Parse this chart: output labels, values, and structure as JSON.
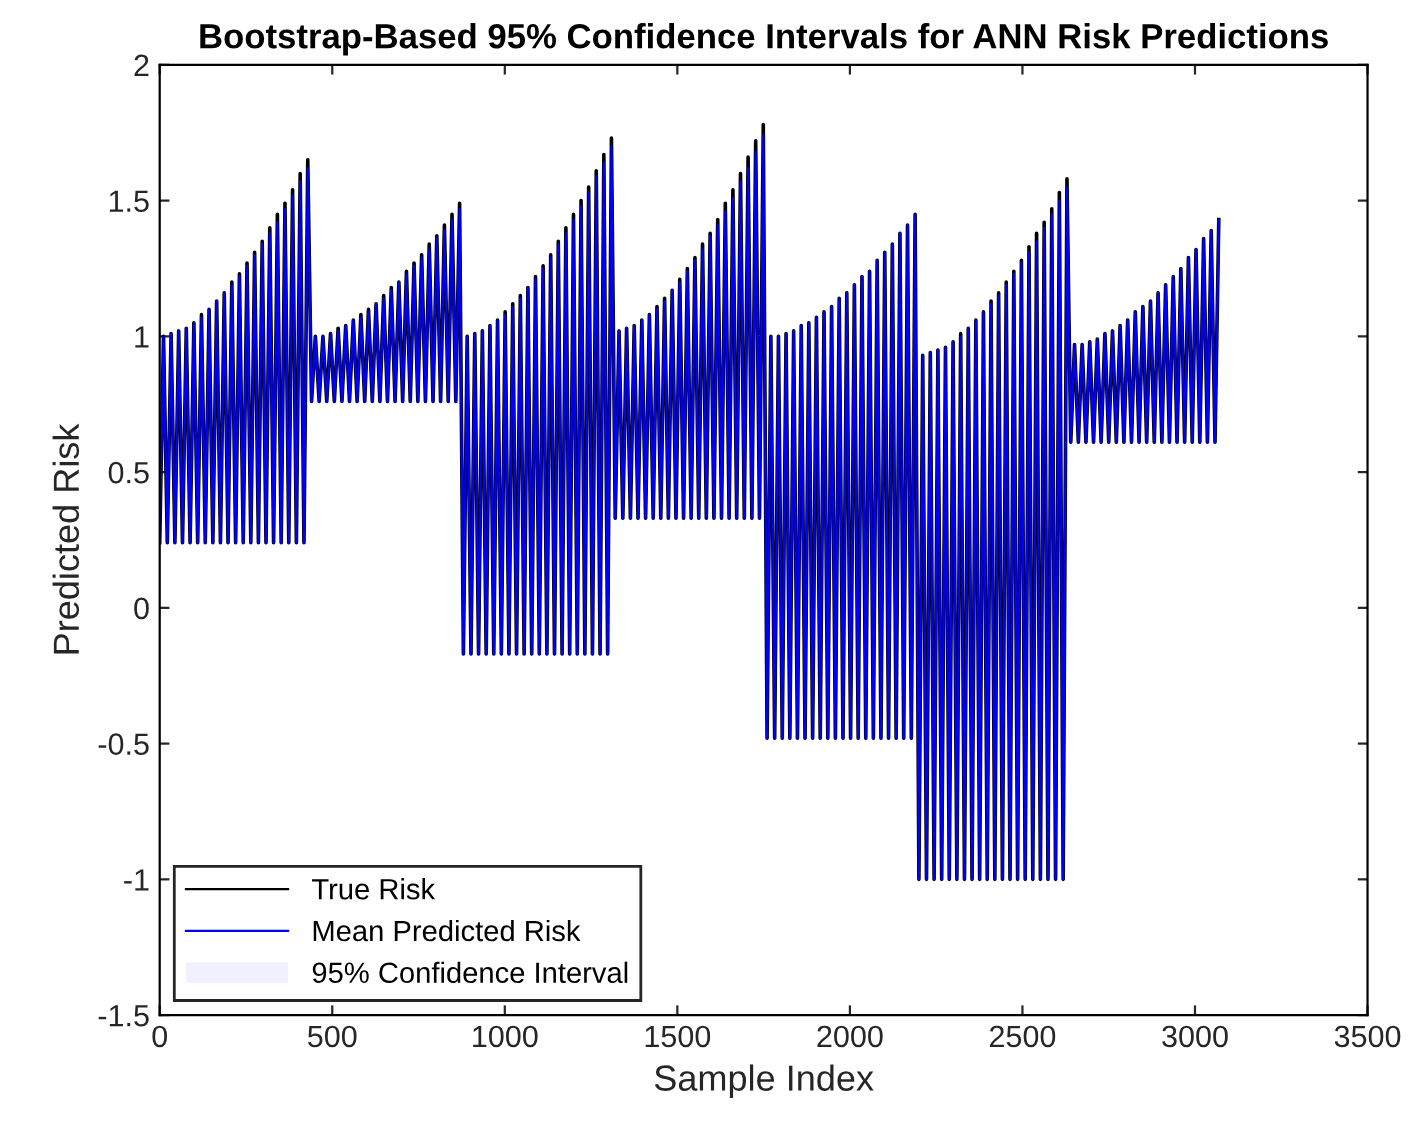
{
  "chart_data": {
    "type": "line",
    "title": "Bootstrap-Based 95% Confidence Intervals for ANN Risk Predictions",
    "xlabel": "Sample Index",
    "ylabel": "Predicted Risk",
    "x": [
      0,
      11,
      22,
      33,
      44,
      55,
      66,
      77,
      88,
      99,
      110,
      121,
      132,
      143,
      154,
      165,
      176,
      187,
      198,
      209,
      220,
      231,
      242,
      253,
      264,
      275,
      286,
      297,
      308,
      319,
      330,
      341,
      352,
      363,
      374,
      385,
      396,
      407,
      418,
      429,
      440,
      451,
      462,
      473,
      484,
      495,
      506,
      517,
      528,
      539,
      550,
      561,
      572,
      583,
      594,
      605,
      616,
      627,
      638,
      649,
      660,
      671,
      682,
      693,
      704,
      715,
      726,
      737,
      748,
      759,
      770,
      781,
      792,
      803,
      814,
      825,
      836,
      847,
      858,
      869,
      880,
      891,
      902,
      913,
      924,
      935,
      946,
      957,
      968,
      979,
      990,
      1001,
      1012,
      1023,
      1034,
      1045,
      1056,
      1067,
      1078,
      1089,
      1100,
      1111,
      1122,
      1133,
      1144,
      1155,
      1166,
      1177,
      1188,
      1199,
      1210,
      1221,
      1232,
      1243,
      1254,
      1265,
      1276,
      1287,
      1298,
      1309,
      1320,
      1331,
      1342,
      1353,
      1364,
      1375,
      1386,
      1397,
      1408,
      1419,
      1430,
      1441,
      1452,
      1463,
      1474,
      1485,
      1496,
      1507,
      1518,
      1529,
      1540,
      1551,
      1562,
      1573,
      1584,
      1595,
      1606,
      1617,
      1628,
      1639,
      1650,
      1661,
      1672,
      1683,
      1694,
      1705,
      1716,
      1727,
      1738,
      1749,
      1760,
      1771,
      1782,
      1793,
      1804,
      1815,
      1826,
      1837,
      1848,
      1859,
      1870,
      1881,
      1892,
      1903,
      1914,
      1925,
      1936,
      1947,
      1958,
      1969,
      1980,
      1991,
      2002,
      2013,
      2024,
      2035,
      2046,
      2057,
      2068,
      2079,
      2090,
      2101,
      2112,
      2123,
      2134,
      2145,
      2156,
      2167,
      2178,
      2189,
      2200,
      2211,
      2222,
      2233,
      2244,
      2255,
      2266,
      2277,
      2288,
      2299,
      2310,
      2321,
      2332,
      2343,
      2354,
      2365,
      2376,
      2387,
      2398,
      2409,
      2420,
      2431,
      2442,
      2453,
      2464,
      2475,
      2486,
      2497,
      2508,
      2519,
      2530,
      2541,
      2552,
      2563,
      2574,
      2585,
      2596,
      2607,
      2618,
      2629,
      2640,
      2651,
      2662,
      2673,
      2684,
      2695,
      2706,
      2717,
      2728,
      2739,
      2750,
      2761,
      2772,
      2783,
      2794,
      2805,
      2816,
      2827,
      2838,
      2849,
      2860,
      2871,
      2882,
      2893,
      2904,
      2915,
      2926,
      2937,
      2948,
      2959,
      2970,
      2981,
      2992,
      3003,
      3014,
      3025,
      3036,
      3047,
      3058,
      3069
    ],
    "series": [
      {
        "name": "True Risk",
        "type": "line",
        "color": "#000000",
        "values": [
          0.24,
          1.0,
          0.24,
          1.01,
          0.24,
          1.02,
          0.24,
          1.03,
          0.24,
          1.05,
          0.24,
          1.08,
          0.24,
          1.1,
          0.24,
          1.13,
          0.24,
          1.16,
          0.24,
          1.2,
          0.24,
          1.23,
          0.24,
          1.27,
          0.24,
          1.31,
          0.24,
          1.35,
          0.24,
          1.4,
          0.24,
          1.45,
          0.24,
          1.49,
          0.24,
          1.54,
          0.24,
          1.6,
          0.24,
          1.65,
          0.76,
          1.0,
          0.76,
          1.0,
          0.76,
          1.01,
          0.76,
          1.03,
          0.76,
          1.04,
          0.76,
          1.06,
          0.76,
          1.08,
          0.76,
          1.1,
          0.76,
          1.12,
          0.76,
          1.15,
          0.76,
          1.18,
          0.76,
          1.2,
          0.76,
          1.24,
          0.76,
          1.27,
          0.76,
          1.3,
          0.76,
          1.34,
          0.76,
          1.37,
          0.76,
          1.41,
          0.76,
          1.45,
          0.76,
          1.49,
          -0.17,
          1.0,
          -0.17,
          1.01,
          -0.17,
          1.02,
          -0.17,
          1.04,
          -0.17,
          1.06,
          -0.17,
          1.09,
          -0.17,
          1.12,
          -0.17,
          1.15,
          -0.17,
          1.18,
          -0.17,
          1.22,
          -0.17,
          1.26,
          -0.17,
          1.3,
          -0.17,
          1.35,
          -0.17,
          1.4,
          -0.17,
          1.45,
          -0.17,
          1.5,
          -0.17,
          1.55,
          -0.17,
          1.61,
          -0.17,
          1.67,
          -0.17,
          1.73,
          0.33,
          1.02,
          0.33,
          1.03,
          0.33,
          1.04,
          0.33,
          1.06,
          0.33,
          1.08,
          0.33,
          1.11,
          0.33,
          1.14,
          0.33,
          1.17,
          0.33,
          1.21,
          0.33,
          1.25,
          0.33,
          1.29,
          0.33,
          1.34,
          0.33,
          1.38,
          0.33,
          1.43,
          0.33,
          1.49,
          0.33,
          1.54,
          0.33,
          1.6,
          0.33,
          1.66,
          0.33,
          1.72,
          0.33,
          1.78,
          -0.48,
          1.0,
          -0.48,
          1.0,
          -0.48,
          1.01,
          -0.48,
          1.02,
          -0.48,
          1.04,
          -0.48,
          1.05,
          -0.48,
          1.07,
          -0.48,
          1.09,
          -0.48,
          1.11,
          -0.48,
          1.14,
          -0.48,
          1.16,
          -0.48,
          1.19,
          -0.48,
          1.22,
          -0.48,
          1.24,
          -0.48,
          1.28,
          -0.48,
          1.31,
          -0.48,
          1.34,
          -0.48,
          1.38,
          -0.48,
          1.41,
          -0.48,
          1.45,
          -1.0,
          0.93,
          -1.0,
          0.94,
          -1.0,
          0.95,
          -1.0,
          0.96,
          -1.0,
          0.98,
          -1.0,
          1.01,
          -1.0,
          1.03,
          -1.0,
          1.06,
          -1.0,
          1.09,
          -1.0,
          1.13,
          -1.0,
          1.16,
          -1.0,
          1.2,
          -1.0,
          1.24,
          -1.0,
          1.28,
          -1.0,
          1.33,
          -1.0,
          1.38,
          -1.0,
          1.42,
          -1.0,
          1.47,
          -1.0,
          1.53,
          -1.0,
          1.58,
          0.61,
          0.97,
          0.61,
          0.97,
          0.61,
          0.98,
          0.61,
          0.99,
          0.61,
          1.01,
          0.61,
          1.02,
          0.61,
          1.04,
          0.61,
          1.06,
          0.61,
          1.09,
          0.61,
          1.11,
          0.61,
          1.13,
          0.61,
          1.16,
          0.61,
          1.19,
          0.61,
          1.22,
          0.61,
          1.25,
          0.61,
          1.29,
          0.61,
          1.32,
          0.61,
          1.36,
          0.61,
          1.39,
          0.61,
          1.43
        ]
      },
      {
        "name": "Mean Predicted Risk",
        "type": "line",
        "color": "#0000ff",
        "values": [
          0.24,
          1.0,
          0.24,
          1.01,
          0.24,
          1.02,
          0.24,
          1.03,
          0.24,
          1.05,
          0.24,
          1.07,
          0.24,
          1.1,
          0.24,
          1.13,
          0.24,
          1.16,
          0.24,
          1.19,
          0.24,
          1.22,
          0.24,
          1.26,
          0.24,
          1.3,
          0.24,
          1.34,
          0.24,
          1.38,
          0.24,
          1.42,
          0.24,
          1.47,
          0.24,
          1.52,
          0.24,
          1.57,
          0.24,
          1.62,
          0.76,
          1.0,
          0.76,
          1.0,
          0.76,
          1.01,
          0.76,
          1.02,
          0.76,
          1.04,
          0.76,
          1.06,
          0.76,
          1.07,
          0.76,
          1.09,
          0.76,
          1.12,
          0.76,
          1.14,
          0.76,
          1.17,
          0.76,
          1.2,
          0.76,
          1.23,
          0.76,
          1.26,
          0.76,
          1.29,
          0.76,
          1.32,
          0.76,
          1.36,
          0.76,
          1.39,
          0.76,
          1.43,
          0.76,
          1.47,
          -0.17,
          1.0,
          -0.17,
          1.01,
          -0.17,
          1.02,
          -0.17,
          1.04,
          -0.17,
          1.06,
          -0.17,
          1.08,
          -0.17,
          1.11,
          -0.17,
          1.14,
          -0.17,
          1.18,
          -0.17,
          1.21,
          -0.17,
          1.25,
          -0.17,
          1.29,
          -0.17,
          1.34,
          -0.17,
          1.38,
          -0.17,
          1.43,
          -0.17,
          1.48,
          -0.17,
          1.53,
          -0.17,
          1.59,
          -0.17,
          1.64,
          -0.17,
          1.7,
          0.33,
          1.02,
          0.33,
          1.03,
          0.33,
          1.04,
          0.33,
          1.06,
          0.33,
          1.08,
          0.33,
          1.1,
          0.33,
          1.13,
          0.33,
          1.17,
          0.33,
          1.2,
          0.33,
          1.24,
          0.33,
          1.28,
          0.33,
          1.32,
          0.33,
          1.37,
          0.33,
          1.41,
          0.33,
          1.46,
          0.33,
          1.51,
          0.33,
          1.57,
          0.33,
          1.62,
          0.33,
          1.68,
          0.33,
          1.74,
          -0.48,
          1.0,
          -0.48,
          1.0,
          -0.48,
          1.01,
          -0.48,
          1.02,
          -0.48,
          1.04,
          -0.48,
          1.05,
          -0.48,
          1.07,
          -0.48,
          1.09,
          -0.48,
          1.11,
          -0.48,
          1.14,
          -0.48,
          1.16,
          -0.48,
          1.19,
          -0.48,
          1.22,
          -0.48,
          1.24,
          -0.48,
          1.28,
          -0.48,
          1.31,
          -0.48,
          1.34,
          -0.48,
          1.38,
          -0.48,
          1.41,
          -0.48,
          1.45,
          -1.0,
          0.93,
          -1.0,
          0.94,
          -1.0,
          0.95,
          -1.0,
          0.96,
          -1.0,
          0.98,
          -1.0,
          1.0,
          -1.0,
          1.03,
          -1.0,
          1.06,
          -1.0,
          1.09,
          -1.0,
          1.12,
          -1.0,
          1.15,
          -1.0,
          1.19,
          -1.0,
          1.23,
          -1.0,
          1.27,
          -1.0,
          1.31,
          -1.0,
          1.35,
          -1.0,
          1.4,
          -1.0,
          1.45,
          -1.0,
          1.5,
          -1.0,
          1.55,
          0.61,
          0.97,
          0.61,
          0.97,
          0.61,
          0.98,
          0.61,
          0.99,
          0.61,
          1.01,
          0.61,
          1.02,
          0.61,
          1.04,
          0.61,
          1.06,
          0.61,
          1.09,
          0.61,
          1.11,
          0.61,
          1.13,
          0.61,
          1.16,
          0.61,
          1.19,
          0.61,
          1.22,
          0.61,
          1.25,
          0.61,
          1.29,
          0.61,
          1.32,
          0.61,
          1.36,
          0.61,
          1.39,
          0.61,
          1.43
        ]
      },
      {
        "name": "95% Confidence Interval",
        "type": "area",
        "color": "#f0f0ff",
        "values": [
          null,
          null,
          null,
          null,
          null,
          null,
          null,
          null,
          null,
          null,
          null,
          null,
          null,
          null,
          null,
          null,
          null,
          null,
          null,
          null,
          null,
          null,
          null,
          null,
          null,
          null,
          null,
          null,
          null,
          null,
          null,
          null,
          null,
          null,
          null,
          null,
          null,
          null,
          null,
          null,
          null,
          null,
          null,
          null,
          null,
          null,
          null,
          null,
          null,
          null,
          null,
          null,
          null,
          null,
          null,
          null,
          null,
          null,
          null,
          null,
          null,
          null,
          null,
          null,
          null,
          null,
          null,
          null,
          null,
          null,
          null,
          null,
          null,
          null,
          null,
          null,
          null,
          null,
          null,
          null,
          null,
          null,
          null,
          null,
          null,
          null,
          null,
          null,
          null,
          null,
          null,
          null,
          null,
          null,
          null,
          null,
          null,
          null,
          null,
          null,
          null,
          null,
          null,
          null,
          null,
          null,
          null,
          null,
          null,
          null,
          null,
          null,
          null,
          null,
          null,
          null,
          null,
          null,
          null,
          null,
          null,
          null,
          null,
          null,
          null,
          null,
          null,
          null,
          null,
          null,
          null,
          null,
          null,
          null,
          null,
          null,
          null,
          null,
          null,
          null,
          null,
          null,
          null,
          null,
          null,
          null,
          null,
          null,
          null,
          null,
          null,
          null,
          null,
          null,
          null,
          null,
          null,
          null,
          null,
          null,
          null,
          null,
          null,
          null,
          null,
          null,
          null,
          null,
          null,
          null,
          null,
          null,
          null,
          null,
          null,
          null,
          null,
          null,
          null,
          null,
          null,
          null,
          null,
          null,
          null,
          null,
          null,
          null,
          null,
          null,
          null,
          null,
          null,
          null,
          null,
          null,
          null,
          null,
          null,
          null,
          null,
          null,
          null,
          null,
          null,
          null,
          null,
          null,
          null,
          null,
          null,
          null,
          null,
          null,
          null,
          null,
          null,
          null,
          null,
          null,
          null,
          null,
          null,
          null,
          null,
          null,
          null,
          null,
          null,
          null,
          null,
          null,
          null,
          null,
          null,
          null,
          null,
          null,
          null,
          null,
          null,
          null,
          null,
          null,
          null,
          null,
          null,
          null,
          null,
          null,
          null,
          null,
          null,
          null,
          null,
          null,
          null,
          null,
          null,
          null,
          null,
          null,
          null,
          null,
          null,
          null,
          null,
          null,
          null,
          null,
          null,
          null,
          null,
          null,
          null,
          null,
          null,
          null,
          null,
          null
        ]
      }
    ],
    "xlim": [
      0,
      3500
    ],
    "xticks": [
      0,
      500,
      1000,
      1500,
      2000,
      2500,
      3000,
      3500
    ],
    "ylim": [
      -1.5,
      2
    ],
    "yticks": [
      -1.5,
      -1,
      -0.5,
      0,
      0.5,
      1,
      1.5,
      2
    ],
    "grid": false,
    "legend": "bottom left",
    "marker": "none",
    "line_style": "solid"
  }
}
